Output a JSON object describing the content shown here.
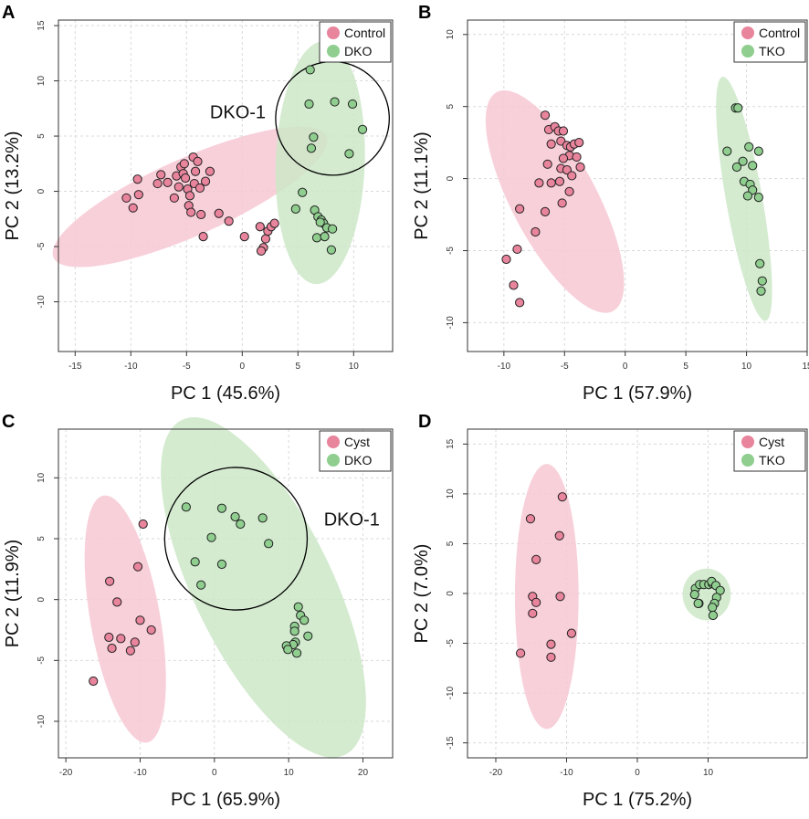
{
  "colors": {
    "red_fill": "#e8849c",
    "red_ellipse": "#f7c8d3",
    "green_fill": "#8fce8f",
    "green_ellipse": "#cde8c8",
    "grid": "#d9d9d9",
    "axis": "#333333"
  },
  "chart_data": [
    {
      "id": "A",
      "panel_label": "A",
      "type": "scatter",
      "xlabel": "PC 1 (45.6%)",
      "ylabel": "PC 2 (13.2%)",
      "xlim": [
        -16.5,
        13.5
      ],
      "ylim": [
        -14.5,
        15.5
      ],
      "xticks": [
        -15,
        -10,
        -5,
        0,
        5,
        10
      ],
      "yticks": [
        -10,
        -5,
        0,
        5,
        10,
        15
      ],
      "legend": [
        "Control",
        "DKO"
      ],
      "legend_position": "top-right",
      "annotation": {
        "text": "DKO-1",
        "x": -2.9,
        "y": 6.6
      },
      "circle": {
        "cx": 8.1,
        "cy": 6.6,
        "r": 5.1
      },
      "ellipses": [
        {
          "series": "Control",
          "cx": -4.7,
          "cy": -0.5,
          "rx": 13.4,
          "ry": 3.5,
          "angle": 24
        },
        {
          "series": "DKO",
          "cx": 7.0,
          "cy": 2.6,
          "rx": 4.0,
          "ry": 11.0,
          "angle": -2
        }
      ],
      "series": [
        {
          "name": "Control",
          "points": [
            [
              -10.4,
              -0.6
            ],
            [
              -9.8,
              -1.5
            ],
            [
              -9.4,
              1.1
            ],
            [
              -9.3,
              -0.3
            ],
            [
              -7.6,
              0.7
            ],
            [
              -7.3,
              1.5
            ],
            [
              -6.7,
              0.8
            ],
            [
              -6.1,
              -0.6
            ],
            [
              -5.9,
              1.4
            ],
            [
              -5.7,
              0.4
            ],
            [
              -5.5,
              2.2
            ],
            [
              -5.3,
              1.6
            ],
            [
              -5.2,
              2.5
            ],
            [
              -5.1,
              1.2
            ],
            [
              -4.9,
              0.2
            ],
            [
              -4.8,
              -1.3
            ],
            [
              -4.7,
              -0.4
            ],
            [
              -4.6,
              -1.9
            ],
            [
              -4.4,
              3.1
            ],
            [
              -4.3,
              0.7
            ],
            [
              -4.2,
              1.8
            ],
            [
              -4.0,
              2.7
            ],
            [
              -3.8,
              0.3
            ],
            [
              -3.7,
              -2.1
            ],
            [
              -3.5,
              -4.1
            ],
            [
              -3.3,
              0.9
            ],
            [
              -2.9,
              1.8
            ],
            [
              -2.1,
              -2.0
            ],
            [
              -1.2,
              -2.7
            ],
            [
              0.2,
              -4.1
            ],
            [
              1.6,
              -3.2
            ],
            [
              1.9,
              -5.1
            ],
            [
              2.1,
              -4.3
            ],
            [
              2.3,
              -3.6
            ],
            [
              2.6,
              -3.2
            ],
            [
              2.9,
              -2.9
            ],
            [
              1.7,
              -5.4
            ]
          ]
        },
        {
          "name": "DKO",
          "points": [
            [
              6.1,
              11.0
            ],
            [
              6.0,
              7.9
            ],
            [
              6.4,
              4.9
            ],
            [
              6.2,
              3.9
            ],
            [
              8.3,
              8.1
            ],
            [
              9.9,
              7.9
            ],
            [
              10.8,
              5.6
            ],
            [
              9.6,
              3.4
            ],
            [
              5.4,
              -0.1
            ],
            [
              4.8,
              -1.6
            ],
            [
              6.5,
              -1.7
            ],
            [
              6.8,
              -2.3
            ],
            [
              7.1,
              -2.6
            ],
            [
              7.3,
              -2.9
            ],
            [
              7.6,
              -3.3
            ],
            [
              6.7,
              -4.2
            ],
            [
              7.4,
              -4.1
            ],
            [
              8.1,
              -3.4
            ],
            [
              8.0,
              -5.3
            ],
            [
              7.0,
              -2.8
            ]
          ]
        }
      ]
    },
    {
      "id": "B",
      "panel_label": "B",
      "type": "scatter",
      "xlabel": "PC 1 (57.9%)",
      "ylabel": "PC 2 (11.1%)",
      "xlim": [
        -13,
        15
      ],
      "ylim": [
        -12,
        11
      ],
      "xticks": [
        -10,
        -5,
        0,
        5,
        10,
        15
      ],
      "yticks": [
        -10,
        -5,
        0,
        5,
        10
      ],
      "legend": [
        "Control",
        "TKO"
      ],
      "legend_position": "top-right",
      "ellipses": [
        {
          "series": "Control",
          "cx": -5.8,
          "cy": -1.6,
          "rx": 3.5,
          "ry": 8.6,
          "angle": 28
        },
        {
          "series": "TKO",
          "cx": 9.8,
          "cy": -1.4,
          "rx": 1.5,
          "ry": 8.6,
          "angle": 10
        }
      ],
      "series": [
        {
          "name": "Control",
          "points": [
            [
              -6.6,
              4.4
            ],
            [
              -6.3,
              3.4
            ],
            [
              -5.8,
              3.6
            ],
            [
              -5.5,
              3.3
            ],
            [
              -5.1,
              3.3
            ],
            [
              -6.1,
              2.4
            ],
            [
              -5.3,
              2.6
            ],
            [
              -4.8,
              2.3
            ],
            [
              -4.5,
              2.2
            ],
            [
              -4.2,
              2.4
            ],
            [
              -3.8,
              2.5
            ],
            [
              -4.6,
              1.6
            ],
            [
              -5.1,
              1.4
            ],
            [
              -4.0,
              1.5
            ],
            [
              -6.4,
              1.0
            ],
            [
              -5.3,
              0.7
            ],
            [
              -4.8,
              0.6
            ],
            [
              -3.7,
              0.8
            ],
            [
              -4.4,
              0.2
            ],
            [
              -6.1,
              -0.3
            ],
            [
              -7.1,
              -0.3
            ],
            [
              -5.4,
              -0.2
            ],
            [
              -4.6,
              -0.9
            ],
            [
              -5.2,
              -1.7
            ],
            [
              -6.6,
              -2.3
            ],
            [
              -8.7,
              -2.1
            ],
            [
              -7.4,
              -3.7
            ],
            [
              -8.9,
              -4.9
            ],
            [
              -9.8,
              -5.6
            ],
            [
              -9.2,
              -7.4
            ],
            [
              -8.7,
              -8.6
            ]
          ]
        },
        {
          "name": "TKO",
          "points": [
            [
              9.1,
              4.9
            ],
            [
              9.3,
              4.9
            ],
            [
              10.2,
              2.2
            ],
            [
              8.4,
              1.9
            ],
            [
              11.0,
              1.9
            ],
            [
              9.7,
              1.2
            ],
            [
              9.2,
              0.8
            ],
            [
              10.5,
              0.9
            ],
            [
              9.8,
              -0.2
            ],
            [
              10.3,
              -0.4
            ],
            [
              10.5,
              -0.8
            ],
            [
              10.1,
              -1.2
            ],
            [
              11.0,
              -1.3
            ],
            [
              11.1,
              -5.9
            ],
            [
              11.3,
              -7.1
            ],
            [
              11.2,
              -7.8
            ]
          ]
        }
      ]
    },
    {
      "id": "C",
      "panel_label": "C",
      "type": "scatter",
      "xlabel": "PC 1 (65.9%)",
      "ylabel": "PC 2 (11.9%)",
      "xlim": [
        -21,
        24
      ],
      "ylim": [
        -13,
        14
      ],
      "xticks": [
        -20,
        -10,
        0,
        10,
        20
      ],
      "yticks": [
        -10,
        -5,
        0,
        5,
        10
      ],
      "legend": [
        "Cyst",
        "DKO"
      ],
      "legend_position": "top-right",
      "annotation": {
        "text": "DKO-1",
        "x": 18.5,
        "y": 6.1
      },
      "circle": {
        "cx": 2.9,
        "cy": 5.0,
        "r": 9.6
      },
      "ellipses": [
        {
          "series": "Cyst",
          "cx": -12.0,
          "cy": -1.6,
          "rx": 4.7,
          "ry": 10.3,
          "angle": 10
        },
        {
          "series": "DKO",
          "cx": 6.6,
          "cy": 1.0,
          "rx": 9.3,
          "ry": 15.3,
          "angle": 26
        }
      ],
      "series": [
        {
          "name": "Cyst",
          "points": [
            [
              -9.6,
              6.2
            ],
            [
              -10.3,
              2.7
            ],
            [
              -14.1,
              1.5
            ],
            [
              -13.1,
              -0.2
            ],
            [
              -10.0,
              -1.7
            ],
            [
              -8.5,
              -2.5
            ],
            [
              -14.2,
              -3.1
            ],
            [
              -12.6,
              -3.2
            ],
            [
              -13.8,
              -4.0
            ],
            [
              -11.3,
              -4.2
            ],
            [
              -10.7,
              -3.5
            ],
            [
              -16.3,
              -6.7
            ]
          ]
        },
        {
          "name": "Cyst_line",
          "points": []
        },
        {
          "name": "DKO",
          "points": [
            [
              -3.8,
              7.6
            ],
            [
              1.0,
              7.5
            ],
            [
              2.8,
              6.8
            ],
            [
              6.5,
              6.7
            ],
            [
              3.5,
              6.2
            ],
            [
              -0.4,
              5.1
            ],
            [
              7.3,
              4.6
            ],
            [
              -2.6,
              3.1
            ],
            [
              1.0,
              2.9
            ],
            [
              -1.8,
              1.2
            ],
            [
              11.3,
              -0.6
            ],
            [
              11.6,
              -1.3
            ],
            [
              12.1,
              -1.7
            ],
            [
              10.8,
              -2.2
            ],
            [
              10.8,
              -2.6
            ],
            [
              12.6,
              -3.0
            ],
            [
              10.9,
              -3.5
            ],
            [
              10.6,
              -3.7
            ],
            [
              9.7,
              -3.8
            ],
            [
              9.9,
              -4.1
            ],
            [
              11.1,
              -4.4
            ]
          ]
        }
      ]
    },
    {
      "id": "D",
      "panel_label": "D",
      "type": "scatter",
      "xlabel": "PC 1 (75.2%)",
      "ylabel": "PC 2 (7.0%)",
      "xlim": [
        -24,
        24
      ],
      "ylim": [
        -16.5,
        16.5
      ],
      "xticks": [
        -20,
        -10,
        0,
        10
      ],
      "yticks": [
        -15,
        -10,
        -5,
        0,
        5,
        10,
        15
      ],
      "legend": [
        "Cyst",
        "TKO"
      ],
      "legend_position": "top-right",
      "ellipses": [
        {
          "series": "Cyst",
          "cx": -12.8,
          "cy": -0.3,
          "rx": 4.5,
          "ry": 13.3,
          "angle": 0
        },
        {
          "series": "TKO",
          "cx": 9.8,
          "cy": -0.1,
          "rx": 3.4,
          "ry": 2.6,
          "angle": 0
        }
      ],
      "series": [
        {
          "name": "Cyst",
          "points": [
            [
              -10.6,
              9.7
            ],
            [
              -15.1,
              7.5
            ],
            [
              -11.0,
              5.8
            ],
            [
              -14.3,
              3.4
            ],
            [
              -14.8,
              -0.3
            ],
            [
              -10.9,
              -0.3
            ],
            [
              -14.3,
              -0.9
            ],
            [
              -14.8,
              -2.0
            ],
            [
              -9.3,
              -4.0
            ],
            [
              -12.2,
              -5.1
            ],
            [
              -16.5,
              -6.0
            ],
            [
              -12.2,
              -6.4
            ]
          ]
        },
        {
          "name": "TKO",
          "points": [
            [
              8.2,
              0.5
            ],
            [
              8.8,
              0.9
            ],
            [
              9.4,
              0.9
            ],
            [
              10.1,
              0.9
            ],
            [
              10.6,
              1.0
            ],
            [
              10.5,
              1.2
            ],
            [
              11.1,
              0.8
            ],
            [
              11.7,
              0.3
            ],
            [
              8.1,
              -0.1
            ],
            [
              11.2,
              -0.4
            ],
            [
              10.9,
              -1.0
            ],
            [
              10.6,
              -1.4
            ],
            [
              8.7,
              -1.0
            ],
            [
              8.6,
              -1.0
            ],
            [
              10.7,
              -2.2
            ]
          ]
        }
      ]
    }
  ]
}
